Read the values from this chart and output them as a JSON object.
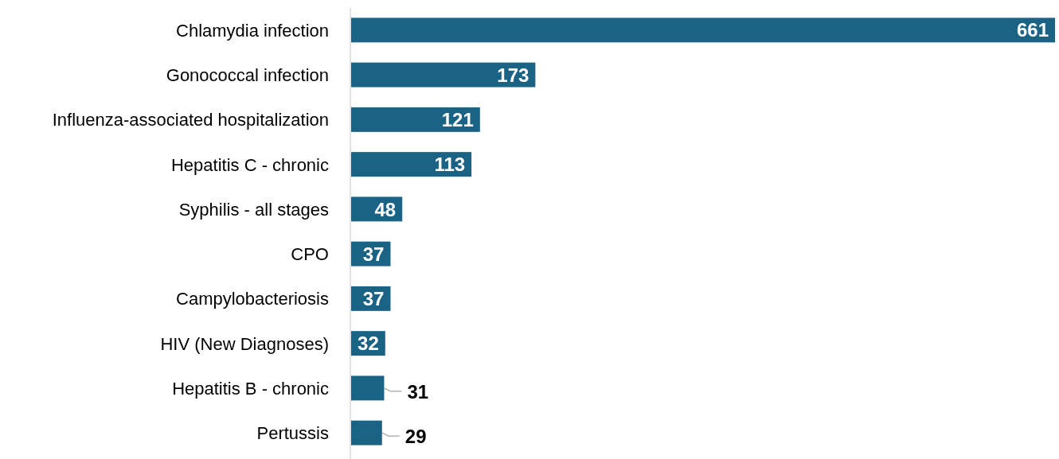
{
  "chart_data": {
    "type": "bar",
    "orientation": "horizontal",
    "categories": [
      "Chlamydia infection",
      "Gonococcal infection",
      "Influenza-associated hospitalization",
      "Hepatitis C - chronic",
      "Syphilis - all stages",
      "CPO",
      "Campylobacteriosis",
      "HIV (New Diagnoses)",
      "Hepatitis B - chronic",
      "Pertussis"
    ],
    "values": [
      661,
      173,
      121,
      113,
      48,
      37,
      37,
      32,
      31,
      29
    ],
    "color": "#1a6385",
    "data_labels": true
  }
}
